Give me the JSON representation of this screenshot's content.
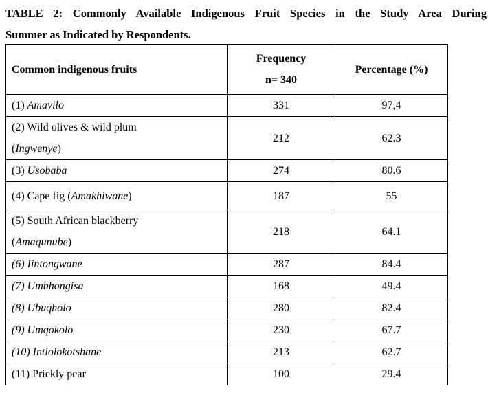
{
  "caption": {
    "line1": "TABLE 2: Commonly Available Indigenous Fruit Species in the Study Area During",
    "line2": "Summer as Indicated by Respondents."
  },
  "table": {
    "headers": {
      "fruit": "Common indigenous fruits",
      "frequency_line1": "Frequency",
      "frequency_line2": "n= 340",
      "percentage": "Percentage (%)"
    },
    "rows": [
      {
        "num": "(1) ",
        "name": "Amavilo",
        "frequency": "331",
        "percentage": "97,4"
      },
      {
        "prefix": "(2) Wild olives & wild plum",
        "local": "Ingwenye",
        "frequency": "212",
        "percentage": "62.3"
      },
      {
        "num": "(3) ",
        "name": "Usobaba",
        "frequency": "274",
        "percentage": "80.6"
      },
      {
        "prefix": "(4) Cape fig (",
        "local": "Amakhiwane",
        "suffix": ")",
        "frequency": "187",
        "percentage": "55"
      },
      {
        "prefix": "(5) South African blackberry",
        "local": "Amaqunube",
        "frequency": "218",
        "percentage": "64.1"
      },
      {
        "name": "(6) Iintongwane",
        "frequency": "287",
        "percentage": "84.4"
      },
      {
        "name": "(7) Umbhongisa",
        "frequency": "168",
        "percentage": "49.4"
      },
      {
        "name": "(8) Ubuqholo",
        "frequency": "280",
        "percentage": "82.4"
      },
      {
        "name": "(9) Umqokolo",
        "frequency": "230",
        "percentage": "67.7"
      },
      {
        "name": "(10) Intlolokotshane",
        "frequency": "213",
        "percentage": "62.7"
      },
      {
        "name": "(11) Prickly pear",
        "frequency": "100",
        "percentage": "29.4"
      }
    ]
  }
}
